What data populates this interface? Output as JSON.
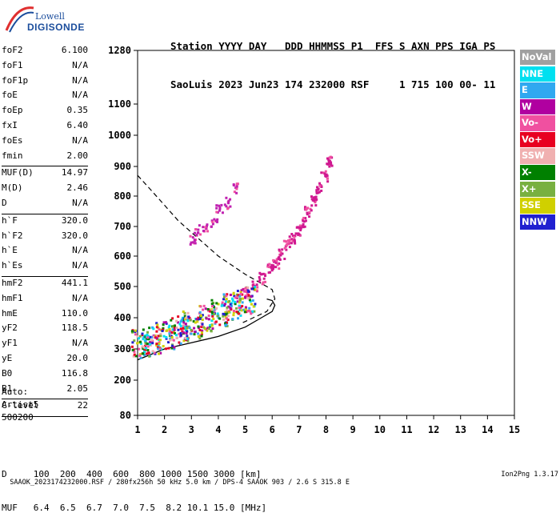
{
  "logo": {
    "line1": "Lowell",
    "line2": "DIGISONDE"
  },
  "header": {
    "line1": "Station YYYY DAY   DDD HHMMSS P1  FFS S AXN PPS IGA PS",
    "line2": "SaoLuis 2023 Jun23 174 232000 RSF     1 715 100 00- 11"
  },
  "params": {
    "group1": [
      {
        "label": "foF2",
        "value": "6.100"
      },
      {
        "label": "foF1",
        "value": "N/A"
      },
      {
        "label": "foF1p",
        "value": "N/A"
      },
      {
        "label": "foE",
        "value": "N/A"
      },
      {
        "label": "foEp",
        "value": "0.35"
      },
      {
        "label": "fxI",
        "value": "6.40"
      },
      {
        "label": "foEs",
        "value": "N/A"
      },
      {
        "label": "fmin",
        "value": "2.00"
      }
    ],
    "group2": [
      {
        "label": "MUF(D)",
        "value": "14.97"
      },
      {
        "label": "M(D)",
        "value": "2.46"
      },
      {
        "label": "D",
        "value": "N/A"
      }
    ],
    "group3": [
      {
        "label": "h`F",
        "value": "320.0"
      },
      {
        "label": "h`F2",
        "value": "320.0"
      },
      {
        "label": "h`E",
        "value": "N/A"
      },
      {
        "label": "h`Es",
        "value": "N/A"
      }
    ],
    "group4": [
      {
        "label": "hmF2",
        "value": "441.1"
      },
      {
        "label": "hmF1",
        "value": "N/A"
      },
      {
        "label": "hmE",
        "value": "110.0"
      },
      {
        "label": "yF2",
        "value": "118.5"
      },
      {
        "label": "yF1",
        "value": "N/A"
      },
      {
        "label": "yE",
        "value": "20.0"
      },
      {
        "label": "B0",
        "value": "116.8"
      },
      {
        "label": "B1",
        "value": "2.05"
      }
    ],
    "group5": [
      {
        "label": "C-level",
        "value": "22"
      }
    ]
  },
  "auto": {
    "line1": "Auto:",
    "line2": "Artist5",
    "line3": "500200"
  },
  "legend": [
    {
      "label": "NoVal",
      "color": "#a0a0a0"
    },
    {
      "label": "NNE",
      "color": "#00e0f0"
    },
    {
      "label": "E",
      "color": "#30a8f0"
    },
    {
      "label": "W",
      "color": "#b000a0"
    },
    {
      "label": "Vo-",
      "color": "#f050a0"
    },
    {
      "label": "Vo+",
      "color": "#e80020"
    },
    {
      "label": "SSW",
      "color": "#f0b0b0"
    },
    {
      "label": "X-",
      "color": "#008000"
    },
    {
      "label": "X+",
      "color": "#78b040"
    },
    {
      "label": "SSE",
      "color": "#d0d000"
    },
    {
      "label": "NNW",
      "color": "#2020d0"
    }
  ],
  "bottom": {
    "line1": "D     100  200  400  600  800 1000 1500 3000 [km]",
    "line2": "MUF   6.4  6.5  6.7  7.0  7.5  8.2 10.1 15.0 [MHz]"
  },
  "footer": {
    "left": "SAAOK_2023174232000.RSF / 280fx256h 50 kHz 5.0 km / DPS-4 SAAOK 903 / 2.6 S 315.8 E",
    "right": "Ion2Png 1.3.17"
  },
  "chart_data": {
    "type": "scatter",
    "x_ticks": [
      "1",
      "2",
      "3",
      "4",
      "5",
      "6",
      "7",
      "8",
      "9",
      "10",
      "11",
      "12",
      "13",
      "14",
      "15"
    ],
    "y_ticks": [
      "80",
      "200",
      "300",
      "400",
      "500",
      "600",
      "700",
      "800",
      "900",
      "1000",
      "1100",
      "1280"
    ],
    "xlim": [
      1,
      15
    ],
    "ylim": [
      80,
      1280
    ],
    "series": [
      {
        "name": "trace_F2",
        "color": "#d01890",
        "x": [
          5.0,
          5.3,
          5.6,
          5.9,
          6.1,
          6.3,
          6.5,
          6.7,
          6.9,
          7.1,
          7.3,
          7.5,
          7.7,
          7.9,
          8.1
        ],
        "y": [
          480,
          505,
          530,
          560,
          580,
          610,
          640,
          665,
          690,
          715,
          750,
          790,
          830,
          870,
          920
        ]
      },
      {
        "name": "cloud_lowF",
        "color": "#b000a0",
        "x": [
          1.1,
          1.5,
          2.0,
          2.5,
          3.0,
          3.5,
          4.0,
          4.5,
          5.0
        ],
        "y": [
          320,
          330,
          345,
          365,
          380,
          400,
          420,
          440,
          460
        ]
      },
      {
        "name": "upper_echoes",
        "color": "#c020b0",
        "x": [
          3.0,
          3.2,
          3.5,
          3.8,
          4.0,
          4.3,
          4.6
        ],
        "y": [
          660,
          690,
          700,
          720,
          760,
          780,
          830
        ]
      }
    ],
    "profile_solid": {
      "x": [
        1.0,
        2.0,
        3.0,
        4.0,
        5.0,
        5.6,
        6.0,
        6.1,
        6.0,
        5.8
      ],
      "y": [
        265,
        300,
        320,
        340,
        370,
        400,
        420,
        440,
        455,
        460
      ]
    },
    "profile_dashed": {
      "x": [
        1.0,
        1.5,
        2.0,
        2.5,
        3.0,
        3.5,
        4.0,
        4.5,
        5.0,
        5.5,
        6.0,
        6.1,
        5.8,
        5.3,
        4.8
      ],
      "y": [
        870,
        820,
        770,
        720,
        680,
        640,
        600,
        570,
        540,
        515,
        490,
        460,
        420,
        400,
        380
      ]
    }
  }
}
